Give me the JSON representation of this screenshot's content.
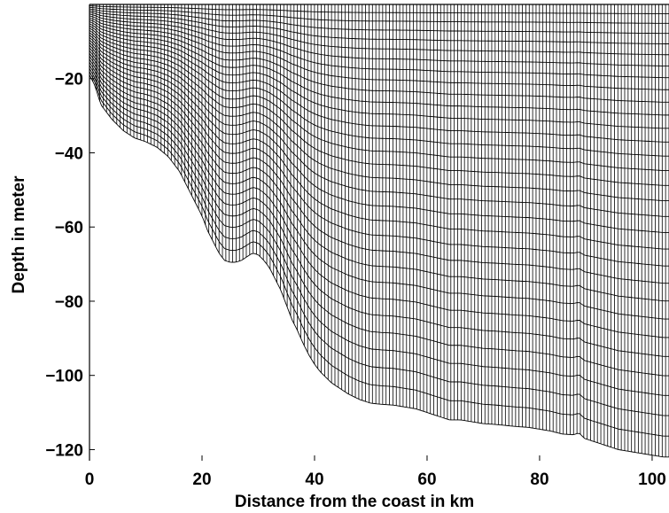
{
  "chart_data": {
    "type": "line",
    "title": "",
    "xlabel": "Distance from the coast in km",
    "ylabel": "Depth in meter",
    "xlim": [
      0,
      103
    ],
    "ylim": [
      -123,
      0
    ],
    "x_ticks": [
      0,
      20,
      40,
      60,
      80,
      100
    ],
    "y_ticks": [
      -20,
      -40,
      -60,
      -80,
      -100,
      -120
    ],
    "x_tick_labels": [
      "0",
      "20",
      "40",
      "60",
      "80",
      "100"
    ],
    "y_tick_labels": [
      "−20",
      "−40",
      "−60",
      "−80",
      "−100",
      "−120"
    ],
    "grid": false,
    "legend": "none",
    "vertical_levels": 30,
    "horizontal_grid_points": 170,
    "series": [
      {
        "x": [
          0,
          1,
          2,
          4,
          6,
          8,
          10,
          12,
          14,
          16,
          17,
          18,
          19,
          20,
          21,
          22,
          23,
          24,
          25,
          26,
          27,
          28,
          29,
          30,
          31,
          32,
          33,
          34,
          35,
          36,
          37,
          38,
          39,
          40,
          41,
          42,
          43,
          44,
          45,
          46,
          48,
          50,
          52,
          54,
          56,
          58,
          60,
          62,
          64,
          66,
          68,
          70,
          72,
          74,
          76,
          78,
          80,
          82,
          84,
          86,
          87,
          88,
          90,
          92,
          94,
          96,
          98,
          100,
          102,
          103
        ],
        "y": [
          -19,
          -22,
          -27,
          -31,
          -34,
          -36,
          -37,
          -38.5,
          -41,
          -45,
          -48,
          -51,
          -54,
          -57,
          -61,
          -64,
          -67,
          -69,
          -69.5,
          -69.5,
          -69,
          -68,
          -67,
          -67.5,
          -69,
          -71,
          -74,
          -77,
          -81,
          -85,
          -88,
          -91.5,
          -94.5,
          -97,
          -99,
          -100.5,
          -102,
          -103,
          -104,
          -105,
          -106.5,
          -107.5,
          -107.8,
          -108,
          -108.5,
          -109,
          -110,
          -111,
          -112,
          -112,
          -112.5,
          -113,
          -113.2,
          -113.5,
          -113.8,
          -114,
          -114.5,
          -115,
          -115.8,
          -116,
          -115.5,
          -117,
          -118,
          -119,
          -120,
          -120.5,
          -121,
          -121.5,
          -122,
          -122
        ]
      }
    ]
  }
}
